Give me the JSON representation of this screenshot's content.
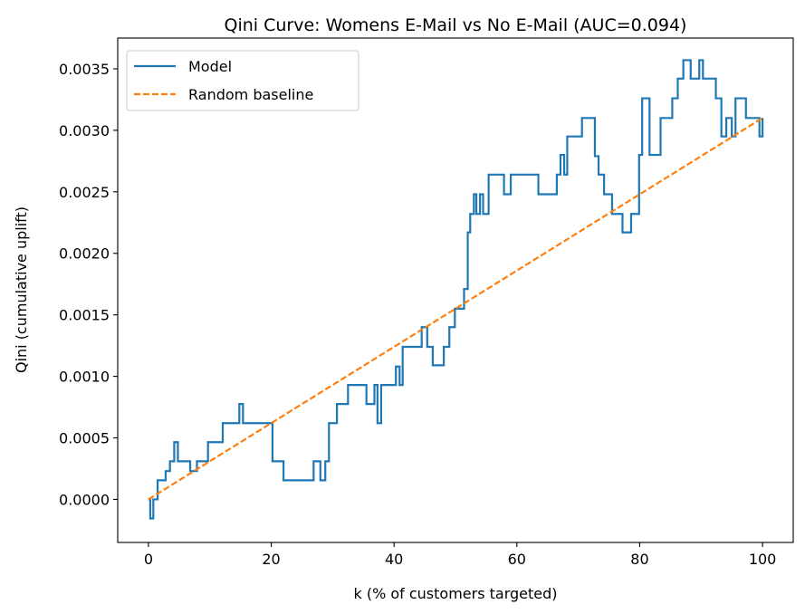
{
  "chart_data": {
    "type": "line",
    "title": "Qini Curve: Womens E-Mail vs No E-Mail (AUC=0.094)",
    "xlabel": "k (% of customers targeted)",
    "ylabel": "Qini (cumulative uplift)",
    "xlim": [
      -5,
      105
    ],
    "ylim": [
      -0.00035,
      0.00375
    ],
    "xticks": [
      0,
      20,
      40,
      60,
      80,
      100
    ],
    "yticks": [
      0.0,
      0.0005,
      0.001,
      0.0015,
      0.002,
      0.0025,
      0.003,
      0.0035
    ],
    "xtick_labels": [
      "0",
      "20",
      "40",
      "60",
      "80",
      "100"
    ],
    "ytick_labels": [
      "0.0000",
      "0.0005",
      "0.0010",
      "0.0015",
      "0.0020",
      "0.0025",
      "0.0030",
      "0.0035"
    ],
    "grid": false,
    "legend_position": "top-left",
    "series": [
      {
        "name": "Model",
        "color": "#1f77b4",
        "style": "solid",
        "step": true,
        "x": [
          0,
          0.3,
          0.8,
          1.5,
          2.8,
          3.5,
          4.2,
          4.8,
          5.1,
          6.8,
          7.9,
          9.7,
          12.1,
          14.8,
          15.4,
          19.6,
          20.2,
          22.0,
          26.9,
          28.0,
          28.8,
          29.4,
          30.7,
          32.5,
          35.5,
          36.8,
          37.3,
          37.9,
          40.3,
          40.9,
          41.4,
          42.8,
          44.5,
          45.4,
          46.3,
          48.1,
          49.0,
          49.9,
          50.5,
          51.4,
          52.0,
          52.4,
          53.0,
          53.4,
          54.0,
          54.5,
          55.4,
          57.9,
          59.0,
          63.0,
          63.5,
          66.5,
          67.1,
          67.7,
          68.2,
          70.6,
          72.7,
          73.3,
          74.2,
          75.5,
          77.2,
          78.6,
          79.9,
          80.4,
          81.6,
          83.4,
          85.3,
          86.2,
          87.1,
          88.3,
          89.7,
          90.3,
          92.4,
          93.3,
          94.1,
          95.0,
          95.6,
          97.3,
          99.5,
          100
        ],
        "y": [
          0.0,
          -0.000155,
          0.0,
          0.000155,
          0.00023,
          0.00031,
          0.000465,
          0.00031,
          0.00031,
          0.00023,
          0.00031,
          0.000465,
          0.00062,
          0.000775,
          0.00062,
          0.00062,
          0.00031,
          0.000155,
          0.00031,
          0.000155,
          0.00031,
          0.00062,
          0.000775,
          0.00093,
          0.000775,
          0.00093,
          0.00062,
          0.00093,
          0.00108,
          0.00093,
          0.00124,
          0.00124,
          0.0014,
          0.00124,
          0.00109,
          0.00124,
          0.0014,
          0.00155,
          0.00155,
          0.00171,
          0.00217,
          0.00232,
          0.00248,
          0.00232,
          0.00248,
          0.00232,
          0.00264,
          0.00248,
          0.00264,
          0.00264,
          0.00248,
          0.00264,
          0.0028,
          0.00264,
          0.00295,
          0.0031,
          0.00279,
          0.00264,
          0.00248,
          0.00232,
          0.00217,
          0.00232,
          0.0028,
          0.00326,
          0.0028,
          0.0031,
          0.00326,
          0.00342,
          0.00357,
          0.00342,
          0.00357,
          0.00342,
          0.00326,
          0.00295,
          0.0031,
          0.00295,
          0.00326,
          0.0031,
          0.00295,
          0.0031
        ]
      },
      {
        "name": "Random baseline",
        "color": "#ff7f0e",
        "style": "dashed",
        "x": [
          0,
          100
        ],
        "y": [
          0.0,
          0.0031
        ]
      }
    ]
  }
}
